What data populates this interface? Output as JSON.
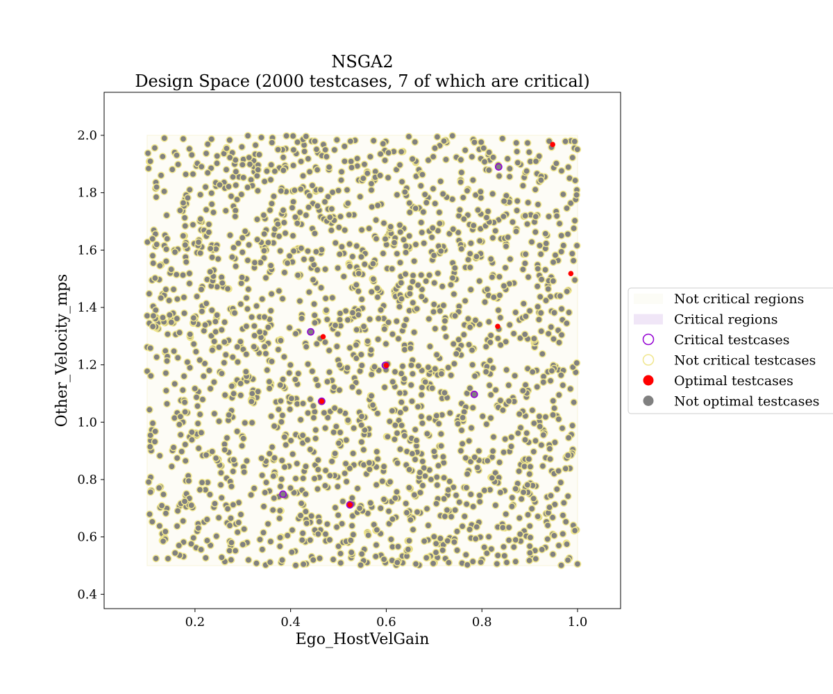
{
  "chart_data": {
    "type": "scatter",
    "title": "NSGA2",
    "subtitle": "Design Space (2000 testcases, 7 of which are critical)",
    "xlabel": "Ego_HostVelGain",
    "ylabel": "Other_Velocity_mps",
    "xlim": [
      0.01,
      1.09
    ],
    "ylim": [
      0.35,
      2.15
    ],
    "xticks": [
      "0.2",
      "0.4",
      "0.6",
      "0.8",
      "1.0"
    ],
    "yticks": [
      "0.4",
      "0.6",
      "0.8",
      "1.0",
      "1.2",
      "1.4",
      "1.6",
      "1.8",
      "2.0"
    ],
    "grid": false,
    "legend_position": "right",
    "total_testcases": 2000,
    "critical_count": 7,
    "not_critical_region": {
      "x": [
        0.1,
        1.0
      ],
      "y": [
        0.5,
        2.0
      ]
    },
    "legend": [
      {
        "label": "Not critical regions",
        "kind": "patch",
        "color": "#f5f5dc"
      },
      {
        "label": "Critical regions",
        "kind": "patch",
        "color": "#e6d5f2"
      },
      {
        "label": "Critical testcases",
        "kind": "ring",
        "color": "#9400d3"
      },
      {
        "label": "Not critical testcases",
        "kind": "ring",
        "color": "#f0e68c"
      },
      {
        "label": "Optimal testcases",
        "kind": "dot",
        "color": "#ff0000"
      },
      {
        "label": "Not optimal testcases",
        "kind": "dot",
        "color": "#808080"
      }
    ],
    "critical_testcases": [
      {
        "x": 0.835,
        "y": 1.89
      },
      {
        "x": 0.442,
        "y": 1.315
      },
      {
        "x": 0.598,
        "y": 1.198
      },
      {
        "x": 0.465,
        "y": 1.073
      },
      {
        "x": 0.784,
        "y": 1.097
      },
      {
        "x": 0.384,
        "y": 0.749
      },
      {
        "x": 0.524,
        "y": 0.712
      }
    ],
    "optimal_testcases": [
      {
        "x": 0.948,
        "y": 1.968
      },
      {
        "x": 0.986,
        "y": 1.518
      },
      {
        "x": 0.833,
        "y": 1.334
      },
      {
        "x": 0.468,
        "y": 1.298
      },
      {
        "x": 0.6,
        "y": 1.198
      },
      {
        "x": 0.465,
        "y": 1.073
      },
      {
        "x": 0.524,
        "y": 0.712
      }
    ],
    "colors": {
      "not_optimal_fill": "#808080",
      "not_critical_edge": "#f0e68c",
      "critical_edge": "#9400d3",
      "optimal_fill": "#ff0000"
    }
  }
}
